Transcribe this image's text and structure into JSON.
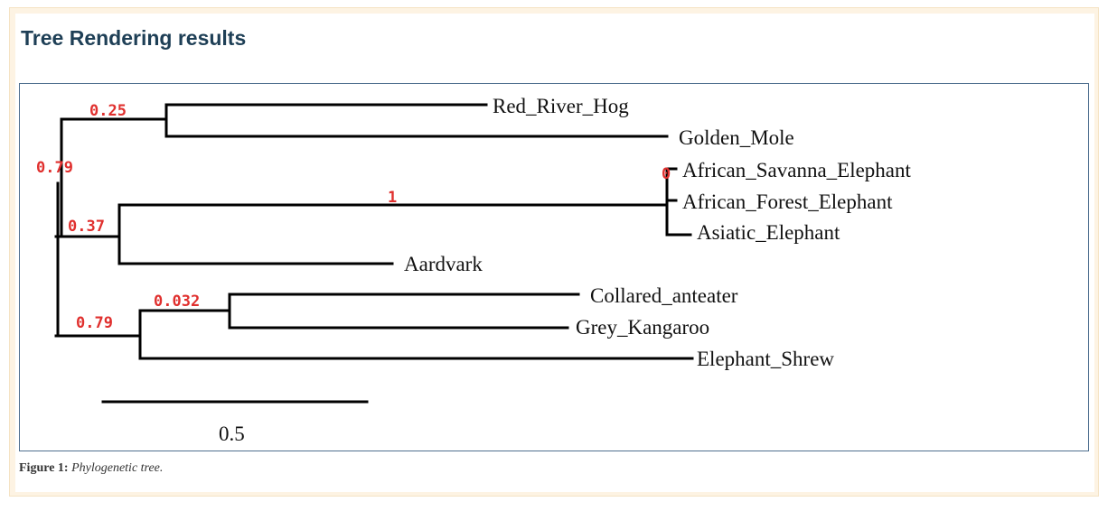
{
  "page": {
    "title": "Tree Rendering results",
    "caption_label": "Figure 1:",
    "caption_text": "Phylogenetic tree."
  },
  "colors": {
    "title": "#1e3f56",
    "support_value": "#e0302e",
    "branch": "#000000",
    "frame_border": "#4f6f8f",
    "panel_background": "#fdf3e3"
  },
  "tree": {
    "leaves": {
      "red_river_hog": "Red_River_Hog",
      "golden_mole": "Golden_Mole",
      "african_savanna_elephant": "African_Savanna_Elephant",
      "african_forest_elephant": "African_Forest_Elephant",
      "asiatic_elephant": "Asiatic_Elephant",
      "aardvark": "Aardvark",
      "collared_anteater": "Collared_anteater",
      "grey_kangaroo": "Grey_Kangaroo",
      "elephant_shrew": "Elephant_Shrew"
    },
    "support_values": {
      "top_clade": "0.79",
      "hog_mole": "0.25",
      "afrotheria_sub": "0.37",
      "elephants": "1",
      "elephant_inner": "0",
      "bottom_clade": "0.79",
      "anteater_kangaroo": "0.032"
    },
    "scale_bar": {
      "label": "0.5",
      "value": 0.5
    }
  }
}
